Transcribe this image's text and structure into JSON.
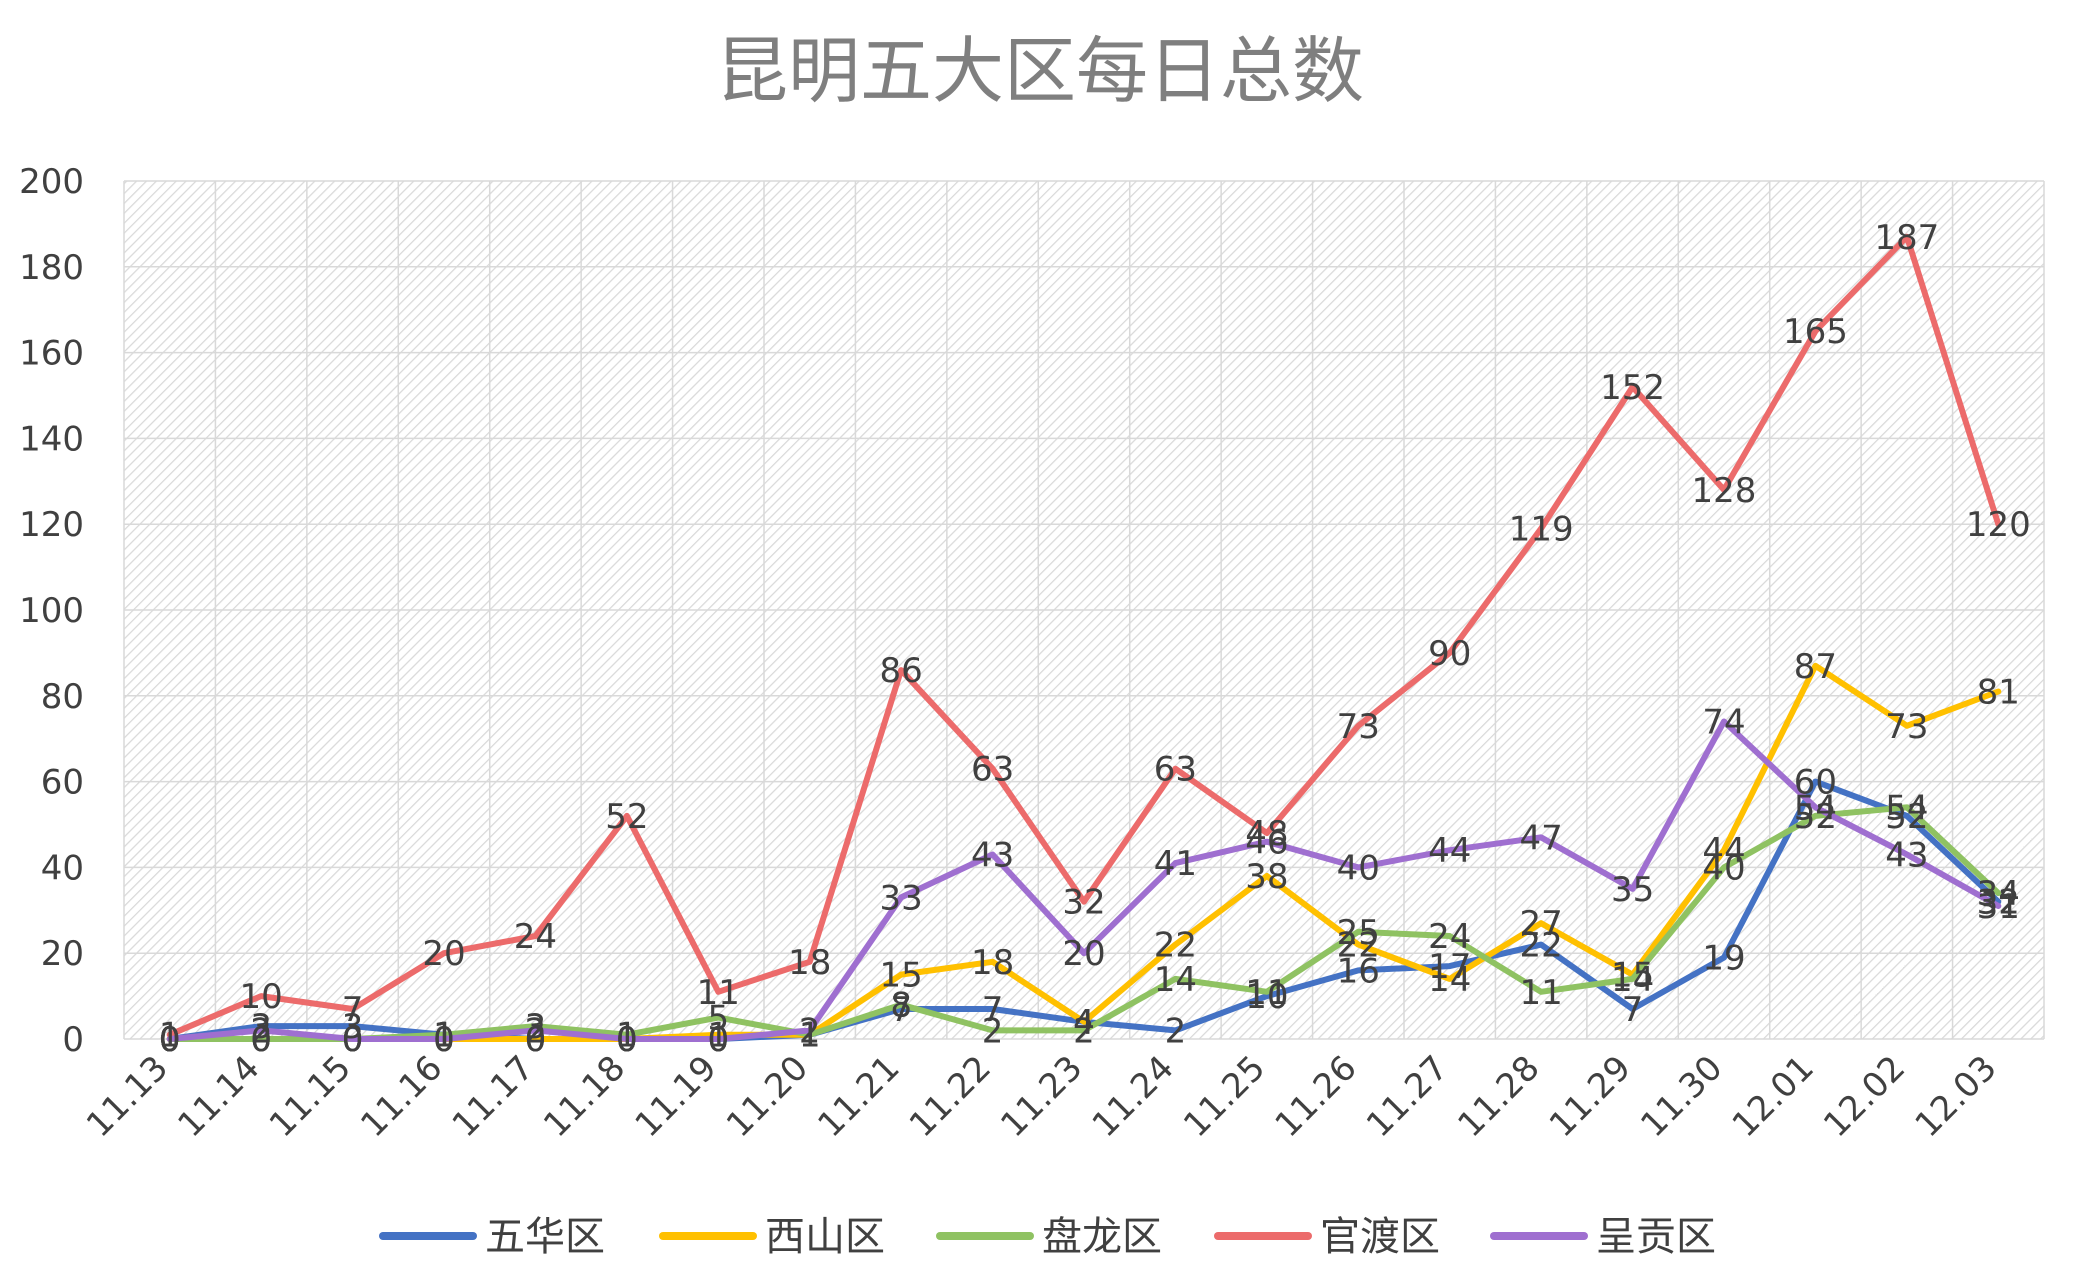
{
  "chart_data": {
    "type": "line",
    "title": "昆明五大区每日总数",
    "categories": [
      "11.13",
      "11.14",
      "11.15",
      "11.16",
      "11.17",
      "11.18",
      "11.19",
      "11.20",
      "11.21",
      "11.22",
      "11.23",
      "11.24",
      "11.25",
      "11.26",
      "11.27",
      "11.28",
      "11.29",
      "11.30",
      "12.01",
      "12.02",
      "12.03"
    ],
    "ylim": [
      0,
      200
    ],
    "yticks": [
      0,
      20,
      40,
      60,
      80,
      100,
      120,
      140,
      160,
      180,
      200
    ],
    "grid": true,
    "legend_position": "bottom",
    "series": [
      {
        "name": "五华区",
        "color": "#4472c4",
        "values": [
          0,
          3,
          3,
          1,
          0,
          0,
          0,
          1,
          7,
          7,
          4,
          2,
          10,
          16,
          17,
          22,
          7,
          19,
          60,
          52,
          32
        ]
      },
      {
        "name": "西山区",
        "color": "#ffc000",
        "values": [
          0,
          0,
          0,
          0,
          0,
          0,
          1,
          1,
          15,
          18,
          4,
          22,
          38,
          22,
          14,
          27,
          15,
          44,
          87,
          73,
          81
        ]
      },
      {
        "name": "盘龙区",
        "color": "#8fc262",
        "values": [
          0,
          0,
          0,
          1,
          3,
          1,
          5,
          1,
          8,
          2,
          2,
          14,
          11,
          25,
          24,
          11,
          14,
          40,
          52,
          54,
          34
        ]
      },
      {
        "name": "官渡区",
        "color": "#ec6b6b",
        "values": [
          1,
          10,
          7,
          20,
          24,
          52,
          11,
          18,
          86,
          63,
          32,
          63,
          48,
          73,
          90,
          119,
          152,
          128,
          165,
          187,
          120
        ]
      },
      {
        "name": "呈贡区",
        "color": "#9f6fd0",
        "values": [
          0,
          2,
          0,
          0,
          2,
          0,
          0,
          2,
          33,
          43,
          20,
          41,
          46,
          40,
          44,
          47,
          35,
          74,
          54,
          43,
          31
        ]
      }
    ]
  }
}
